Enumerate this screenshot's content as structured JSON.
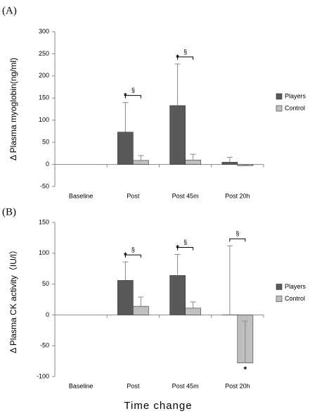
{
  "x_label": "Time  change",
  "chart_data": [
    {
      "type": "bar",
      "panel": "(A)",
      "ylabel": "Δ Plasma myoglobin(ng/ml)",
      "categories": [
        "Baseline",
        "Post",
        "Post 45m",
        "Post 20h"
      ],
      "ylim": [
        -50,
        300
      ],
      "yticks": [
        -50,
        0,
        50,
        100,
        150,
        200,
        250,
        300
      ],
      "legend": "right",
      "series": [
        {
          "name": "Players",
          "color": "#595959",
          "values": [
            null,
            73,
            133,
            5
          ],
          "errors": [
            null,
            67,
            94,
            11
          ],
          "markers": [
            null,
            "*",
            "*",
            null
          ]
        },
        {
          "name": "Control",
          "color": "#bfbfbf",
          "values": [
            null,
            9,
            10,
            -3
          ],
          "errors": [
            null,
            11,
            13,
            2
          ],
          "markers": [
            null,
            null,
            null,
            null
          ]
        }
      ],
      "brackets": [
        null,
        "§",
        "§",
        null
      ]
    },
    {
      "type": "bar",
      "panel": "(B)",
      "ylabel": "Δ Plasma CK activity（IU/l）",
      "categories": [
        "Baseline",
        "Post",
        "Post 45m",
        "Post 20h"
      ],
      "ylim": [
        -100,
        150
      ],
      "yticks": [
        -100,
        -50,
        0,
        50,
        100,
        150
      ],
      "legend": "right",
      "series": [
        {
          "name": "Players",
          "color": "#595959",
          "values": [
            null,
            56,
            64,
            0
          ],
          "errors": [
            null,
            30,
            34,
            112
          ],
          "markers": [
            null,
            "*",
            "*",
            null
          ]
        },
        {
          "name": "Control",
          "color": "#bfbfbf",
          "values": [
            null,
            14,
            11,
            -78
          ],
          "errors": [
            null,
            15,
            10,
            68
          ],
          "markers": [
            null,
            null,
            null,
            "*"
          ]
        }
      ],
      "brackets": [
        null,
        "§",
        "§",
        "§"
      ]
    }
  ]
}
